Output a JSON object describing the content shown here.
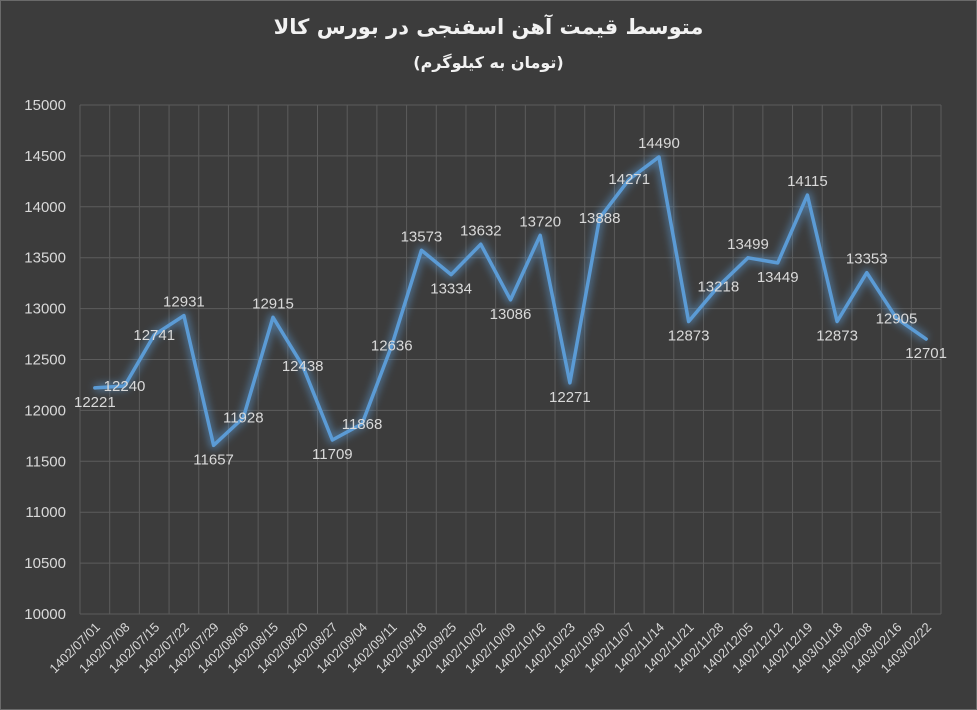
{
  "chart_data": {
    "type": "line",
    "title": "متوسط قیمت آهن اسفنجی در بورس کالا",
    "subtitle": "(تومان به کیلوگرم)",
    "xlabel": "",
    "ylabel": "",
    "ylim": [
      10000,
      15000
    ],
    "yticks": [
      10000,
      10500,
      11000,
      11500,
      12000,
      12500,
      13000,
      13500,
      14000,
      14500,
      15000
    ],
    "grid": true,
    "line_color": "#5b9bd5",
    "categories": [
      "1402/07/01",
      "1402/07/08",
      "1402/07/15",
      "1402/07/22",
      "1402/07/29",
      "1402/08/06",
      "1402/08/15",
      "1402/08/20",
      "1402/08/27",
      "1402/09/04",
      "1402/09/11",
      "1402/09/18",
      "1402/09/25",
      "1402/10/02",
      "1402/10/09",
      "1402/10/16",
      "1402/10/23",
      "1402/10/30",
      "1402/11/07",
      "1402/11/14",
      "1402/11/21",
      "1402/11/28",
      "1402/12/05",
      "1402/12/12",
      "1402/12/19",
      "1403/01/18",
      "1403/02/08",
      "1403/02/16",
      "1403/02/22"
    ],
    "series": [
      {
        "values": [
          12221,
          12240,
          12741,
          12931,
          11657,
          11928,
          12915,
          12438,
          11709,
          11868,
          12636,
          13573,
          13334,
          13632,
          13086,
          13720,
          12271,
          13888,
          14271,
          14490,
          12873,
          13218,
          13499,
          13449,
          14115,
          12873,
          13353,
          12905,
          12701
        ]
      }
    ]
  }
}
